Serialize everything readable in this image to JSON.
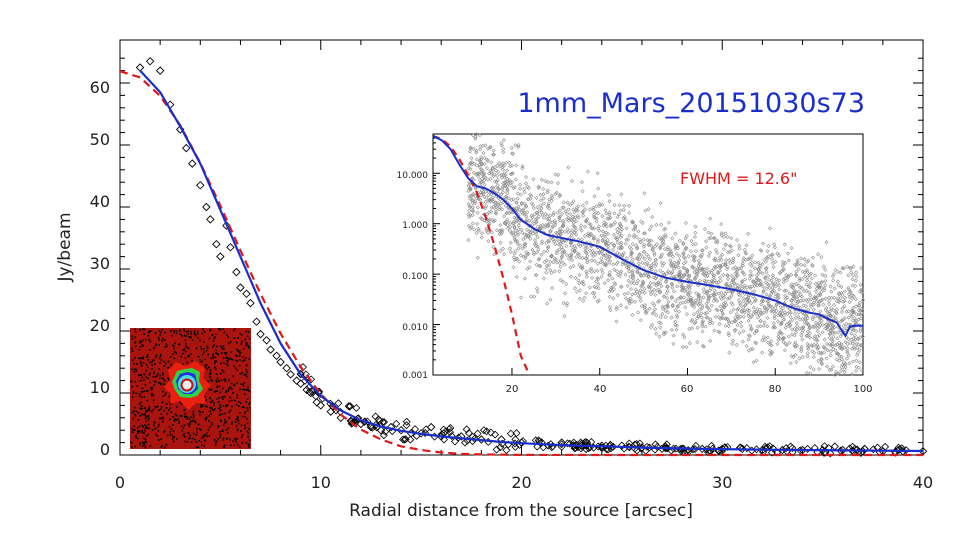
{
  "chart_data": [
    {
      "type": "scatter",
      "title": "1mm_Mars_20151030s73",
      "xlabel": "Radial distance from the source [arcsec]",
      "ylabel": "Jy/beam",
      "xlim": [
        0,
        40
      ],
      "ylim": [
        -1,
        66
      ],
      "xticks": [
        "0",
        "10",
        "20",
        "30",
        "40"
      ],
      "yticks": [
        "0",
        "10",
        "20",
        "30",
        "40",
        "50",
        "60"
      ],
      "grid": false,
      "colors": {
        "data": "#000000",
        "profile": "#1a2ecc",
        "fit": "#e01818"
      },
      "series": [
        {
          "marker": "diamond-open",
          "x": [
            1.0,
            1.5,
            2.0,
            2.5,
            3.0,
            3.3,
            3.6,
            4.0,
            4.3,
            4.5,
            4.8,
            5.0,
            5.3,
            5.5,
            5.8,
            6.0,
            6.3,
            6.5,
            6.8,
            7.0,
            7.3,
            7.5,
            7.8,
            8.0,
            8.3,
            8.5,
            8.8,
            9.0,
            9.3,
            9.5,
            9.8,
            10.0,
            10.5,
            11.0,
            11.5,
            12.0,
            12.5,
            13.0,
            13.5,
            14.0,
            14.5,
            15.0,
            15.5,
            16.0,
            17.0,
            18.0,
            19.0,
            20.0,
            21.0,
            22.0,
            23.0,
            24.0,
            25.0,
            26.0,
            27.0,
            28.0,
            29.0,
            30.0,
            31.0,
            32.0,
            33.0,
            34.0,
            35.0,
            36.0,
            37.0,
            38.0,
            39.0,
            40.0
          ],
          "y": [
            62.5,
            63.5,
            62.0,
            56.5,
            52.5,
            49.5,
            47.0,
            43.5,
            40.0,
            38.0,
            34.0,
            32.0,
            37.0,
            33.5,
            29.5,
            27.0,
            26.0,
            24.5,
            21.5,
            19.5,
            18.5,
            17.0,
            16.0,
            15.0,
            14.0,
            13.0,
            12.0,
            11.5,
            10.5,
            10.0,
            8.5,
            8.0,
            7.0,
            6.0,
            5.5,
            5.0,
            4.5,
            4.0,
            4.5,
            4.0,
            3.5,
            3.5,
            4.5,
            3.0,
            3.0,
            2.5,
            2.5,
            2.0,
            2.0,
            2.0,
            1.5,
            1.5,
            1.5,
            1.2,
            1.0,
            1.0,
            1.0,
            1.0,
            1.0,
            0.8,
            0.8,
            0.8,
            0.8,
            0.8,
            0.6,
            0.6,
            0.6,
            0.6
          ]
        },
        {
          "type": "line",
          "x": [
            1,
            2,
            3,
            4,
            5,
            6,
            7,
            8,
            9,
            10,
            11,
            12,
            13,
            14,
            15,
            16,
            17,
            18,
            19,
            20,
            22,
            24,
            26,
            28,
            30,
            32,
            34,
            36,
            38,
            40
          ],
          "y": [
            62.0,
            58.5,
            53.0,
            47.0,
            39.5,
            32.0,
            24.5,
            18.0,
            13.0,
            9.5,
            7.2,
            5.6,
            4.6,
            3.9,
            3.4,
            3.0,
            2.7,
            2.4,
            2.1,
            1.9,
            1.6,
            1.4,
            1.2,
            1.05,
            0.95,
            0.85,
            0.8,
            0.75,
            0.7,
            0.65
          ]
        },
        {
          "type": "line",
          "style": "dashed",
          "x": [
            0,
            1,
            2,
            3,
            4,
            5,
            6,
            7,
            8,
            9,
            10,
            11,
            12,
            13,
            14,
            15,
            16,
            17,
            18,
            20,
            25,
            30,
            35,
            40
          ],
          "y": [
            61.9,
            60.9,
            57.9,
            53.2,
            47.1,
            40.2,
            33.0,
            26.0,
            19.6,
            14.2,
            9.8,
            6.5,
            4.1,
            2.5,
            1.4,
            0.8,
            0.4,
            0.2,
            0.1,
            0.02,
            0.0,
            0.0,
            0.0,
            0.0
          ]
        }
      ]
    },
    {
      "type": "scatter",
      "xscale": "linear",
      "yscale": "log",
      "xlim": [
        2,
        100
      ],
      "ylim": [
        0.001,
        60
      ],
      "xticks": [
        "20",
        "40",
        "60",
        "80",
        "100"
      ],
      "yticks": [
        "0.001",
        "0.010",
        "0.100",
        "1.000",
        "10.000"
      ],
      "annotation": "FWHM = 12.6\"",
      "colors": {
        "data": "#8c8c8c",
        "profile": "#1a2ecc",
        "fit": "#e01818"
      },
      "series": [
        {
          "type": "line",
          "x": [
            2,
            4,
            6,
            8,
            10,
            12,
            14,
            16,
            18,
            20,
            22,
            25,
            28,
            30,
            35,
            40,
            45,
            50,
            55,
            60,
            65,
            70,
            75,
            80,
            82,
            85,
            88,
            90,
            92,
            94,
            95,
            96,
            97,
            98,
            100
          ],
          "y": [
            55,
            45,
            30,
            15,
            8,
            5.5,
            5,
            4,
            3,
            2,
            1.2,
            0.8,
            0.6,
            0.55,
            0.45,
            0.35,
            0.2,
            0.12,
            0.085,
            0.07,
            0.06,
            0.05,
            0.04,
            0.03,
            0.025,
            0.02,
            0.017,
            0.016,
            0.013,
            0.011,
            0.008,
            0.006,
            0.009,
            0.0095,
            0.0095
          ]
        },
        {
          "type": "line",
          "style": "dashed",
          "x": [
            2,
            4,
            6,
            8,
            10,
            12,
            14,
            16,
            18,
            20,
            22,
            24
          ],
          "y": [
            55,
            47,
            34,
            19,
            9.2,
            4.1,
            1.35,
            0.37,
            0.084,
            0.016,
            0.0024,
            0.001
          ]
        }
      ]
    }
  ]
}
